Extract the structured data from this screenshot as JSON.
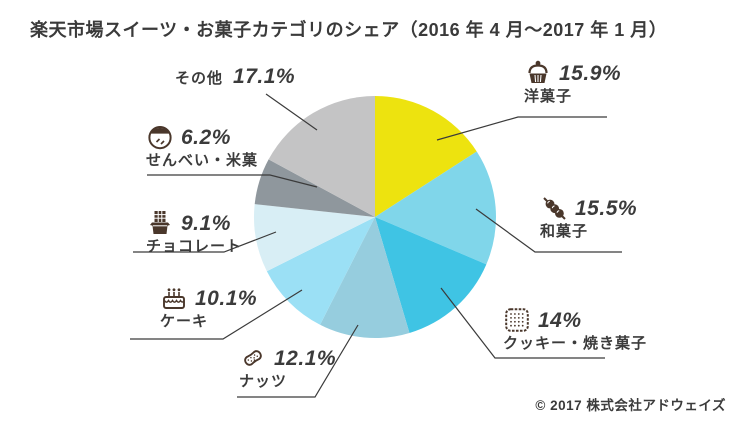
{
  "header": {
    "title": "楽天市場スイーツ・お菓子カテゴリのシェア（2016 年 4 月～2017 年 1 月）"
  },
  "footer": {
    "copyright": "© 2017 株式会社アドウェイズ"
  },
  "chart_data": {
    "type": "pie",
    "title": "楽天市場スイーツ・お菓子カテゴリのシェア（2016年4月～2017年1月）",
    "start_angle_deg_from_top": 0,
    "direction": "clockwise",
    "legend_position": "around-callouts",
    "text_color": "#3b3b3b",
    "leader_line_color": "#3b3b3b",
    "icon_color": "#4a372b",
    "slices": [
      {
        "id": "yogashi",
        "label": "洋菓子",
        "value": 15.9,
        "display": "15.9%",
        "color": "#ede30f",
        "icon": "cupcake-icon"
      },
      {
        "id": "wagashi",
        "label": "和菓子",
        "value": 15.5,
        "display": "15.5%",
        "color": "#80d6ea",
        "icon": "dango-icon"
      },
      {
        "id": "cookie",
        "label": "クッキー・焼き菓子",
        "value": 14,
        "display": "14%",
        "color": "#3fc4e4",
        "icon": "biscuit-icon"
      },
      {
        "id": "nuts",
        "label": "ナッツ",
        "value": 12.1,
        "display": "12.1%",
        "color": "#96cdde",
        "icon": "peanut-icon"
      },
      {
        "id": "cake",
        "label": "ケーキ",
        "value": 10.1,
        "display": "10.1%",
        "color": "#9be0f5",
        "icon": "cake-icon"
      },
      {
        "id": "chocolate",
        "label": "チョコレート",
        "value": 9.1,
        "display": "9.1%",
        "color": "#d8eef5",
        "icon": "chocolate-icon"
      },
      {
        "id": "senbei",
        "label": "せんべい・米菓",
        "value": 6.2,
        "display": "6.2%",
        "color": "#8f979d",
        "icon": "senbei-icon"
      },
      {
        "id": "other",
        "label": "その他",
        "value": 17.1,
        "display": "17.1%",
        "color": "#c4c4c5",
        "icon": null
      }
    ]
  }
}
